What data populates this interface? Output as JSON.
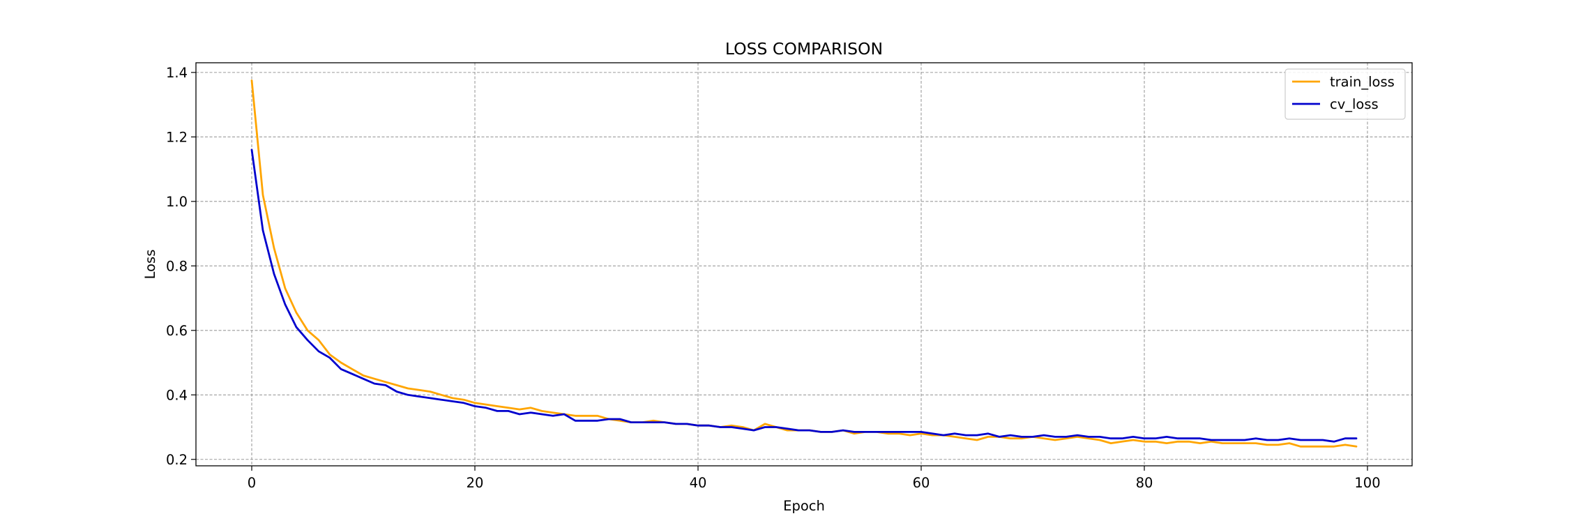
{
  "chart_data": {
    "type": "line",
    "title": "LOSS COMPARISON",
    "xlabel": "Epoch",
    "ylabel": "Loss",
    "xlim": [
      -5,
      104
    ],
    "ylim": [
      0.18,
      1.43
    ],
    "xticks": [
      0,
      20,
      40,
      60,
      80,
      100
    ],
    "yticks": [
      0.2,
      0.4,
      0.6,
      0.8,
      1.0,
      1.2,
      1.4
    ],
    "grid": true,
    "legend_position": "top-right",
    "x": [
      0,
      1,
      2,
      3,
      4,
      5,
      6,
      7,
      8,
      9,
      10,
      11,
      12,
      13,
      14,
      15,
      16,
      17,
      18,
      19,
      20,
      21,
      22,
      23,
      24,
      25,
      26,
      27,
      28,
      29,
      30,
      31,
      32,
      33,
      34,
      35,
      36,
      37,
      38,
      39,
      40,
      41,
      42,
      43,
      44,
      45,
      46,
      47,
      48,
      49,
      50,
      51,
      52,
      53,
      54,
      55,
      56,
      57,
      58,
      59,
      60,
      61,
      62,
      63,
      64,
      65,
      66,
      67,
      68,
      69,
      70,
      71,
      72,
      73,
      74,
      75,
      76,
      77,
      78,
      79,
      80,
      81,
      82,
      83,
      84,
      85,
      86,
      87,
      88,
      89,
      90,
      91,
      92,
      93,
      94,
      95,
      96,
      97,
      98,
      99
    ],
    "series": [
      {
        "name": "train_loss",
        "color": "#FFA500",
        "values": [
          1.375,
          1.02,
          0.855,
          0.73,
          0.655,
          0.6,
          0.57,
          0.525,
          0.5,
          0.48,
          0.46,
          0.45,
          0.44,
          0.43,
          0.42,
          0.415,
          0.41,
          0.4,
          0.39,
          0.385,
          0.375,
          0.37,
          0.365,
          0.36,
          0.355,
          0.36,
          0.35,
          0.345,
          0.34,
          0.335,
          0.335,
          0.335,
          0.325,
          0.32,
          0.315,
          0.315,
          0.32,
          0.315,
          0.31,
          0.31,
          0.305,
          0.305,
          0.3,
          0.305,
          0.3,
          0.29,
          0.31,
          0.3,
          0.29,
          0.29,
          0.29,
          0.285,
          0.285,
          0.29,
          0.28,
          0.285,
          0.285,
          0.28,
          0.28,
          0.275,
          0.28,
          0.275,
          0.275,
          0.27,
          0.265,
          0.26,
          0.27,
          0.27,
          0.265,
          0.265,
          0.27,
          0.265,
          0.26,
          0.265,
          0.27,
          0.265,
          0.26,
          0.25,
          0.255,
          0.26,
          0.255,
          0.255,
          0.25,
          0.255,
          0.255,
          0.25,
          0.255,
          0.25,
          0.25,
          0.25,
          0.25,
          0.245,
          0.245,
          0.25,
          0.24,
          0.24,
          0.24,
          0.24,
          0.245,
          0.24
        ]
      },
      {
        "name": "cv_loss",
        "color": "#0000CD",
        "values": [
          1.16,
          0.91,
          0.775,
          0.68,
          0.61,
          0.57,
          0.535,
          0.515,
          0.48,
          0.465,
          0.45,
          0.435,
          0.43,
          0.41,
          0.4,
          0.395,
          0.39,
          0.385,
          0.38,
          0.375,
          0.365,
          0.36,
          0.35,
          0.35,
          0.34,
          0.345,
          0.34,
          0.335,
          0.34,
          0.32,
          0.32,
          0.32,
          0.325,
          0.325,
          0.315,
          0.315,
          0.315,
          0.315,
          0.31,
          0.31,
          0.305,
          0.305,
          0.3,
          0.3,
          0.295,
          0.29,
          0.3,
          0.3,
          0.295,
          0.29,
          0.29,
          0.285,
          0.285,
          0.29,
          0.285,
          0.285,
          0.285,
          0.285,
          0.285,
          0.285,
          0.285,
          0.28,
          0.275,
          0.28,
          0.275,
          0.275,
          0.28,
          0.27,
          0.275,
          0.27,
          0.27,
          0.275,
          0.27,
          0.27,
          0.275,
          0.27,
          0.27,
          0.265,
          0.265,
          0.27,
          0.265,
          0.265,
          0.27,
          0.265,
          0.265,
          0.265,
          0.26,
          0.26,
          0.26,
          0.26,
          0.265,
          0.26,
          0.26,
          0.265,
          0.26,
          0.26,
          0.26,
          0.255,
          0.265,
          0.265
        ]
      }
    ]
  }
}
